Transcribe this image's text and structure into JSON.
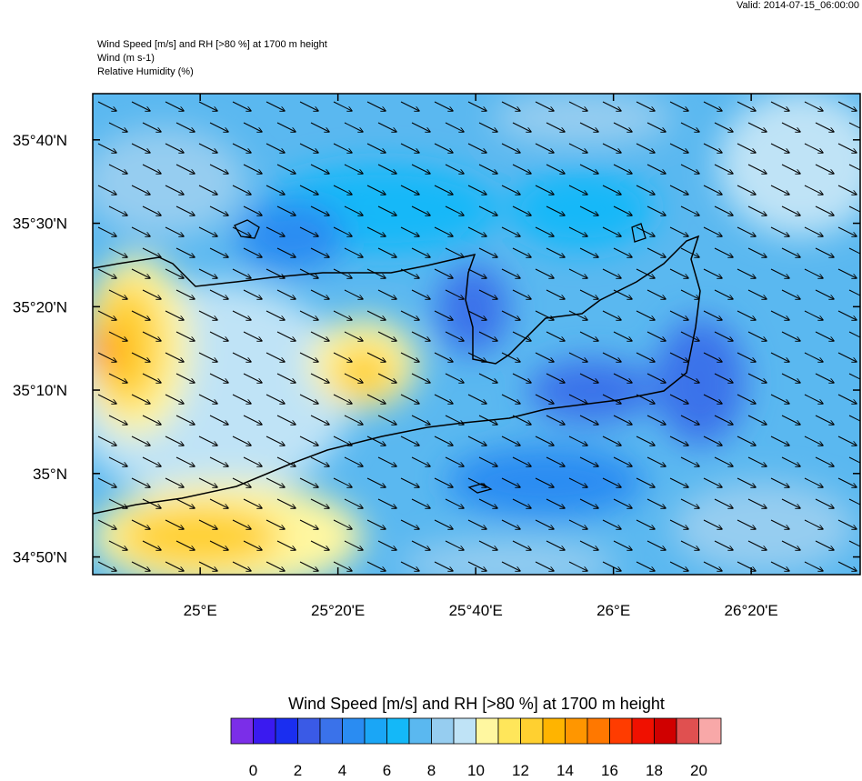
{
  "valid": "Valid: 2014-07-15_06:00:00",
  "header": [
    "Wind Speed [m/s] and RH [>80 %] at 1700 m height",
    "Wind   (m s-1)",
    "Relative Humidity   (%)"
  ],
  "map": {
    "xlim": [
      24.74,
      26.597
    ],
    "ylim": [
      34.798,
      35.759
    ],
    "xticks": [
      {
        "value": 25,
        "label": "25°E"
      },
      {
        "value": 25.3333,
        "label": "25°20'E"
      },
      {
        "value": 25.6667,
        "label": "25°40'E"
      },
      {
        "value": 26,
        "label": "26°E"
      },
      {
        "value": 26.3333,
        "label": "26°20'E"
      }
    ],
    "yticks": [
      {
        "value": 34.8333,
        "label": "34°50'N"
      },
      {
        "value": 35,
        "label": "35°N"
      },
      {
        "value": 35.1667,
        "label": "35°10'N"
      },
      {
        "value": 35.3333,
        "label": "35°20'N"
      },
      {
        "value": 35.5,
        "label": "35°30'N"
      },
      {
        "value": 35.6667,
        "label": "35°40'N"
      }
    ]
  },
  "colorbar": {
    "title": "Wind Speed [m/s] and RH [>80 %] at 1700 m height",
    "lim": [
      -1,
      21
    ],
    "colors": [
      "#7b2ee8",
      "#3a1af0",
      "#1a2ef0",
      "#3a5ae6",
      "#3a72ea",
      "#2a8cf2",
      "#1aa6f6",
      "#14b8f8",
      "#5ab8f0",
      "#96cdf0",
      "#bfe3f6",
      "#fff7a0",
      "#ffe65a",
      "#ffd030",
      "#ffb400",
      "#ff9600",
      "#ff7800",
      "#ff3c00",
      "#f01000",
      "#d00000",
      "#e05050",
      "#f8a8a8"
    ],
    "ticks": [
      0,
      2,
      4,
      6,
      8,
      10,
      12,
      14,
      16,
      18,
      20
    ]
  }
}
